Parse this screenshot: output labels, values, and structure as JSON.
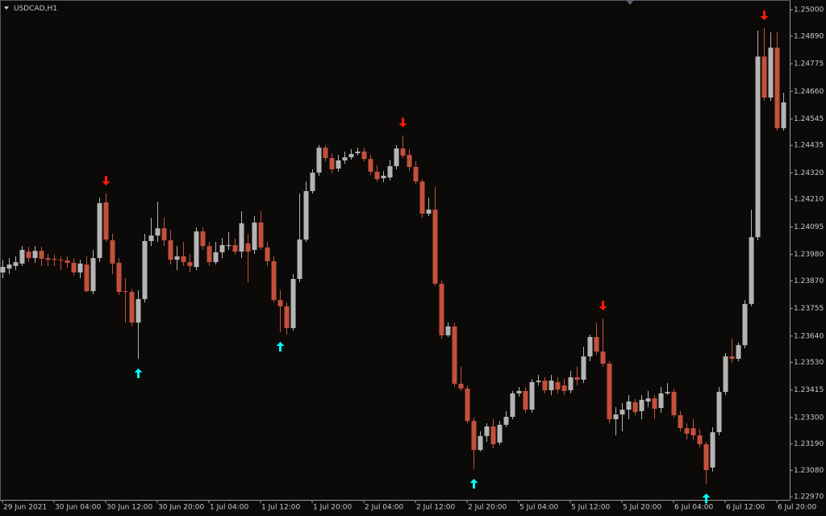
{
  "chart_data": {
    "type": "candlestick",
    "title": "USDCAD,H1",
    "categories": [
      "29 Jun 2021",
      null,
      null,
      null,
      null,
      null,
      null,
      null,
      "30 Jun 04:00",
      null,
      null,
      null,
      null,
      null,
      null,
      null,
      "30 Jun 12:00",
      null,
      null,
      null,
      null,
      null,
      null,
      null,
      "30 Jun 20:00",
      null,
      null,
      null,
      null,
      null,
      null,
      null,
      "1 Jul 04:00",
      null,
      null,
      null,
      null,
      null,
      null,
      null,
      "1 Jul 12:00",
      null,
      null,
      null,
      null,
      null,
      null,
      null,
      "1 Jul 20:00",
      null,
      null,
      null,
      null,
      null,
      null,
      null,
      "2 Jul 04:00",
      null,
      null,
      null,
      null,
      null,
      null,
      null,
      "2 Jul 12:00",
      null,
      null,
      null,
      null,
      null,
      null,
      null,
      "2 Jul 20:00",
      null,
      null,
      null,
      null,
      null,
      null,
      null,
      "5 Jul 04:00",
      null,
      null,
      null,
      null,
      null,
      null,
      null,
      "5 Jul 12:00",
      null,
      null,
      null,
      null,
      null,
      null,
      null,
      "5 Jul 20:00",
      null,
      null,
      null,
      null,
      null,
      null,
      null,
      "6 Jul 04:00",
      null,
      null,
      null,
      null,
      null,
      null,
      null,
      "6 Jul 12:00",
      null,
      null,
      null,
      null,
      null,
      null,
      null,
      "6 Jul 20:00",
      null
    ],
    "open": [
      1.23905,
      1.23921,
      1.23932,
      1.23942,
      1.23992,
      1.23965,
      1.23995,
      1.23965,
      1.23962,
      1.23958,
      1.23955,
      1.23945,
      1.23905,
      1.23938,
      1.23827,
      1.23965,
      1.24197,
      1.24039,
      1.23945,
      1.23827,
      1.23824,
      1.23696,
      1.23794,
      1.24036,
      1.24059,
      1.24089,
      1.24039,
      1.23958,
      1.23972,
      1.23948,
      1.23928,
      1.24076,
      1.24015,
      1.23948,
      1.23989,
      1.24015,
      1.24019,
      1.23992,
      1.24026,
      1.23999,
      1.24113,
      1.24009,
      1.23952,
      1.2379,
      1.23764,
      1.23673,
      1.23878,
      1.24042,
      1.24244,
      1.24321,
      1.24425,
      1.24382,
      1.24338,
      1.24372,
      1.24385,
      1.24402,
      1.24409,
      1.24378,
      1.24325,
      1.24298,
      1.24301,
      1.24348,
      1.24422,
      1.24395,
      1.24345,
      1.24284,
      1.2415,
      1.24167,
      1.23858,
      1.23643,
      1.2368,
      1.23441,
      1.23421,
      1.23286,
      1.23165,
      1.23223,
      1.23263,
      1.23196,
      1.2327,
      1.23303,
      1.23401,
      1.23411,
      1.23333,
      1.23448,
      1.23454,
      1.23414,
      1.23448,
      1.23434,
      1.23414,
      1.23468,
      1.23458,
      1.23555,
      1.23636,
      1.23575,
      1.23525,
      1.23293,
      1.23313,
      1.23333,
      1.23364,
      1.23327,
      1.23367,
      1.2338,
      1.2334,
      1.23401,
      1.23407,
      1.2331,
      1.23256,
      1.23256,
      1.23226,
      1.23189,
      1.23092,
      1.23239,
      1.23407,
      1.23555,
      1.23545,
      1.23602,
      1.23774,
      1.24052,
      1.24805,
      1.24634,
      1.24842,
      1.24506
    ],
    "high": [
      1.23958,
      1.23965,
      1.23972,
      1.24015,
      1.24012,
      1.24015,
      1.24012,
      1.23982,
      1.23979,
      1.23972,
      1.23972,
      1.23965,
      1.23958,
      1.23972,
      1.23999,
      1.24217,
      1.24234,
      1.24066,
      1.23965,
      1.23881,
      1.23837,
      1.23831,
      1.24066,
      1.24133,
      1.242,
      1.24133,
      1.24083,
      1.24015,
      1.24032,
      1.23982,
      1.24093,
      1.24093,
      1.24032,
      1.24032,
      1.24049,
      1.24073,
      1.24046,
      1.2416,
      1.24066,
      1.2414,
      1.2416,
      1.24032,
      1.23972,
      1.23831,
      1.2378,
      1.23898,
      1.24234,
      1.24284,
      1.24335,
      1.24436,
      1.24436,
      1.24402,
      1.24395,
      1.24409,
      1.24419,
      1.24425,
      1.24425,
      1.24395,
      1.24352,
      1.24328,
      1.24375,
      1.24436,
      1.24476,
      1.24419,
      1.24368,
      1.24294,
      1.24217,
      1.24261,
      1.23871,
      1.23696,
      1.23696,
      1.23512,
      1.23434,
      1.233,
      1.23243,
      1.23276,
      1.23293,
      1.23286,
      1.23327,
      1.23411,
      1.23427,
      1.23427,
      1.23461,
      1.23478,
      1.23468,
      1.23478,
      1.23468,
      1.23461,
      1.23495,
      1.23512,
      1.23595,
      1.23646,
      1.23696,
      1.23713,
      1.23535,
      1.23343,
      1.2336,
      1.23394,
      1.23377,
      1.23394,
      1.23411,
      1.23394,
      1.23427,
      1.23444,
      1.23421,
      1.23327,
      1.23276,
      1.23293,
      1.23253,
      1.23199,
      1.2326,
      1.23427,
      1.23569,
      1.23629,
      1.23612,
      1.2379,
      1.24167,
      1.24913,
      1.24923,
      1.24906,
      1.24906,
      1.24654
    ],
    "low": [
      1.23881,
      1.23898,
      1.23915,
      1.23932,
      1.23948,
      1.23945,
      1.23932,
      1.23932,
      1.23932,
      1.23915,
      1.23925,
      1.23891,
      1.23881,
      1.23824,
      1.23814,
      1.23948,
      1.24032,
      1.23898,
      1.23811,
      1.23696,
      1.2368,
      1.23545,
      1.2378,
      1.24015,
      1.24032,
      1.24015,
      1.23938,
      1.23915,
      1.23932,
      1.23905,
      1.23915,
      1.23999,
      1.23932,
      1.23938,
      1.23965,
      1.23999,
      1.23979,
      1.23965,
      1.23864,
      1.23982,
      1.23999,
      1.23932,
      1.2378,
      1.23656,
      1.23646,
      1.23663,
      1.23864,
      1.24032,
      1.24234,
      1.24308,
      1.24368,
      1.24318,
      1.24325,
      1.24358,
      1.24375,
      1.24392,
      1.24368,
      1.24311,
      1.24284,
      1.24281,
      1.24288,
      1.24335,
      1.24382,
      1.24328,
      1.24274,
      1.24133,
      1.2414,
      1.23847,
      1.23629,
      1.23636,
      1.23427,
      1.23411,
      1.23276,
      1.23085,
      1.23159,
      1.23199,
      1.23172,
      1.23186,
      1.2326,
      1.23293,
      1.23387,
      1.2332,
      1.2332,
      1.23434,
      1.23401,
      1.23394,
      1.23401,
      1.23394,
      1.23401,
      1.23434,
      1.23444,
      1.23535,
      1.23562,
      1.23512,
      1.23276,
      1.23226,
      1.23243,
      1.23293,
      1.2331,
      1.23293,
      1.23343,
      1.23293,
      1.2332,
      1.23394,
      1.233,
      1.23243,
      1.23209,
      1.23209,
      1.23176,
      1.23024,
      1.23075,
      1.23226,
      1.23394,
      1.23528,
      1.23535,
      1.23589,
      1.23764,
      1.24039,
      1.2462,
      1.2462,
      1.24496,
      1.24496
    ],
    "close": [
      1.23928,
      1.23938,
      1.23948,
      1.23999,
      1.23965,
      1.23995,
      1.23962,
      1.23958,
      1.23958,
      1.23955,
      1.23945,
      1.23905,
      1.23942,
      1.23827,
      1.23965,
      1.24194,
      1.24042,
      1.23942,
      1.23824,
      1.23824,
      1.23696,
      1.23794,
      1.24036,
      1.24059,
      1.24089,
      1.24039,
      1.23958,
      1.23972,
      1.23948,
      1.23932,
      1.24076,
      1.24015,
      1.23948,
      1.23989,
      1.24019,
      1.24019,
      1.23992,
      1.2411,
      1.23992,
      1.24113,
      1.24009,
      1.23952,
      1.2379,
      1.23764,
      1.23673,
      1.23878,
      1.24042,
      1.24244,
      1.24321,
      1.24425,
      1.24382,
      1.24335,
      1.24372,
      1.24385,
      1.24399,
      1.24409,
      1.24378,
      1.24325,
      1.24294,
      1.24308,
      1.24348,
      1.24422,
      1.24392,
      1.24345,
      1.24284,
      1.2415,
      1.24167,
      1.23858,
      1.23643,
      1.2368,
      1.23441,
      1.23421,
      1.23286,
      1.23165,
      1.23223,
      1.23263,
      1.23189,
      1.2327,
      1.23303,
      1.23401,
      1.23411,
      1.23333,
      1.23448,
      1.23454,
      1.23414,
      1.23454,
      1.23417,
      1.23411,
      1.23468,
      1.23458,
      1.23555,
      1.23636,
      1.23575,
      1.23525,
      1.23293,
      1.23313,
      1.23333,
      1.23367,
      1.23323,
      1.23374,
      1.2338,
      1.23337,
      1.23401,
      1.23407,
      1.2331,
      1.23256,
      1.23233,
      1.23226,
      1.23189,
      1.23081,
      1.23239,
      1.23407,
      1.23555,
      1.23545,
      1.23602,
      1.23774,
      1.24052,
      1.24805,
      1.24634,
      1.24842,
      1.24506,
      1.24614
    ],
    "up_color": "#b4b4b4",
    "down_color": "#c4503c",
    "ylim": [
      1.22957,
      1.25034
    ],
    "yticks": [
      {
        "value": 1.25,
        "label": "1.25000"
      },
      {
        "value": 1.2489,
        "label": "1.24890"
      },
      1.24775,
      {
        "value": 1.2466,
        "label": "1.24660"
      },
      1.24545,
      1.24435,
      {
        "value": 1.2432,
        "label": "1.24320"
      },
      {
        "value": 1.2421,
        "label": "1.24210"
      },
      1.24095,
      {
        "value": 1.2398,
        "label": "1.23980"
      },
      {
        "value": 1.2387,
        "label": "1.23870"
      },
      1.23755,
      {
        "value": 1.2364,
        "label": "1.23640"
      },
      {
        "value": 1.2353,
        "label": "1.23530"
      },
      1.23415,
      {
        "value": 1.233,
        "label": "1.23300"
      },
      {
        "value": 1.2319,
        "label": "1.23190"
      },
      {
        "value": 1.2308,
        "label": "1.23080"
      },
      {
        "value": 1.2297,
        "label": "1.22970"
      }
    ],
    "arrows_up": [
      21,
      43,
      73,
      109
    ],
    "arrows_down": [
      16,
      62,
      93,
      118
    ],
    "arrow_up_color": "#00ffff",
    "arrow_down_color": "#ff1a00"
  }
}
